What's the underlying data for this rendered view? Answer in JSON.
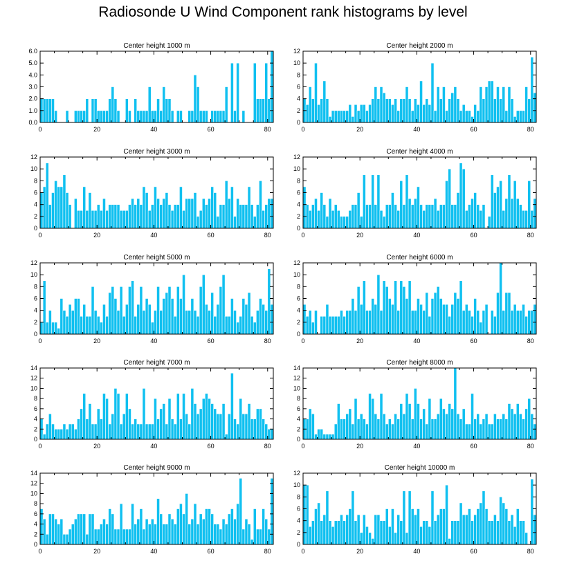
{
  "page_title": "Radiosonde U Wind Component rank histograms by level",
  "colors": {
    "bar": "#10c0f0",
    "bar_edge": "#ffffff",
    "axis": "#000000"
  },
  "chart_data": [
    {
      "type": "bar",
      "title": "Center height 1000 m",
      "xlim": [
        0,
        82
      ],
      "ylim": [
        0,
        6
      ],
      "xticks": [
        0,
        20,
        40,
        60,
        80
      ],
      "yticks": [
        0,
        1,
        2,
        3,
        4,
        5,
        6
      ],
      "ytick_labels": [
        "0.0",
        "1.0",
        "2.0",
        "3.0",
        "4.0",
        "5.0",
        "6.0"
      ],
      "values": [
        2,
        2,
        2,
        2,
        2,
        1,
        0,
        0,
        0,
        1,
        0,
        0,
        1,
        1,
        1,
        1,
        2,
        0,
        2,
        2,
        1,
        1,
        1,
        1,
        2,
        3,
        2,
        1,
        0,
        0,
        2,
        1,
        0,
        2,
        1,
        1,
        1,
        1,
        3,
        1,
        1,
        2,
        1,
        3,
        2,
        2,
        1,
        0,
        1,
        1,
        0,
        0,
        1,
        1,
        4,
        3,
        1,
        1,
        1,
        0,
        1,
        1,
        1,
        1,
        1,
        3,
        0,
        5,
        1,
        5,
        0,
        1,
        0,
        0,
        0,
        5,
        2,
        2,
        2,
        5,
        2,
        6
      ]
    },
    {
      "type": "bar",
      "title": "Center height 2000 m",
      "xlim": [
        0,
        82
      ],
      "ylim": [
        0,
        12
      ],
      "xticks": [
        0,
        20,
        40,
        60,
        80
      ],
      "yticks": [
        0,
        2,
        4,
        6,
        8,
        10,
        12
      ],
      "ytick_labels": [
        "0",
        "2",
        "4",
        "6",
        "8",
        "10",
        "12"
      ],
      "values": [
        4,
        3,
        6,
        4,
        10,
        3,
        4,
        7,
        4,
        1,
        2,
        2,
        2,
        2,
        2,
        2,
        3,
        1,
        3,
        2,
        3,
        3,
        2,
        3,
        4,
        6,
        4,
        6,
        5,
        4,
        4,
        3,
        4,
        2,
        4,
        4,
        6,
        4,
        2,
        4,
        3,
        7,
        3,
        4,
        3,
        10,
        2,
        6,
        4,
        6,
        2,
        4,
        5,
        6,
        4,
        2,
        3,
        2,
        2,
        1,
        3,
        2,
        6,
        4,
        6,
        7,
        7,
        4,
        6,
        4,
        6,
        2,
        6,
        4,
        1,
        2,
        2,
        2,
        6,
        4,
        11,
        5
      ]
    },
    {
      "type": "bar",
      "title": "Center height 3000 m",
      "xlim": [
        0,
        82
      ],
      "ylim": [
        0,
        12
      ],
      "xticks": [
        0,
        20,
        40,
        60,
        80
      ],
      "yticks": [
        0,
        2,
        4,
        6,
        8,
        10,
        12
      ],
      "ytick_labels": [
        "0",
        "2",
        "4",
        "6",
        "8",
        "10",
        "12"
      ],
      "values": [
        6,
        7,
        11,
        4,
        6,
        8,
        7,
        7,
        9,
        6,
        4,
        0,
        5,
        3,
        3,
        7,
        3,
        6,
        3,
        3,
        4,
        3,
        5,
        3,
        4,
        4,
        4,
        4,
        3,
        3,
        3,
        4,
        5,
        4,
        5,
        4,
        7,
        6,
        3,
        4,
        7,
        5,
        4,
        5,
        6,
        4,
        3,
        4,
        4,
        7,
        3,
        5,
        5,
        5,
        6,
        2,
        3,
        5,
        4,
        5,
        7,
        6,
        2,
        4,
        4,
        8,
        5,
        7,
        2,
        5,
        4,
        4,
        4,
        7,
        4,
        2,
        4,
        8,
        3,
        4,
        5,
        5
      ]
    },
    {
      "type": "bar",
      "title": "Center height 4000 m",
      "xlim": [
        0,
        82
      ],
      "ylim": [
        0,
        12
      ],
      "xticks": [
        0,
        20,
        40,
        60,
        80
      ],
      "yticks": [
        0,
        2,
        4,
        6,
        8,
        10,
        12
      ],
      "ytick_labels": [
        "0",
        "2",
        "4",
        "6",
        "8",
        "10",
        "12"
      ],
      "values": [
        7,
        4,
        3,
        4,
        5,
        3,
        6,
        4,
        2,
        5,
        3,
        4,
        3,
        2,
        2,
        2,
        3,
        4,
        4,
        6,
        2,
        9,
        4,
        4,
        9,
        4,
        9,
        3,
        2,
        4,
        4,
        6,
        4,
        3,
        8,
        4,
        9,
        5,
        4,
        5,
        7,
        4,
        3,
        4,
        4,
        4,
        5,
        3,
        4,
        4,
        8,
        10,
        4,
        4,
        6,
        11,
        10,
        3,
        4,
        5,
        6,
        4,
        3,
        4,
        0,
        2,
        9,
        6,
        7,
        8,
        3,
        5,
        9,
        5,
        8,
        5,
        4,
        3,
        3,
        8,
        3,
        5
      ]
    },
    {
      "type": "bar",
      "title": "Center height 5000 m",
      "xlim": [
        0,
        82
      ],
      "ylim": [
        0,
        12
      ],
      "xticks": [
        0,
        20,
        40,
        60,
        80
      ],
      "yticks": [
        0,
        2,
        4,
        6,
        8,
        10,
        12
      ],
      "ytick_labels": [
        "0",
        "2",
        "4",
        "6",
        "8",
        "10",
        "12"
      ],
      "values": [
        2,
        9,
        2,
        4,
        2,
        2,
        1,
        6,
        4,
        3,
        5,
        4,
        6,
        6,
        3,
        5,
        3,
        3,
        8,
        4,
        3,
        2,
        5,
        3,
        7,
        8,
        6,
        4,
        8,
        3,
        5,
        8,
        9,
        3,
        5,
        8,
        4,
        6,
        5,
        2,
        4,
        8,
        4,
        6,
        7,
        8,
        6,
        3,
        8,
        6,
        10,
        4,
        4,
        6,
        4,
        3,
        8,
        10,
        5,
        4,
        7,
        3,
        5,
        8,
        10,
        3,
        3,
        6,
        4,
        2,
        3,
        6,
        5,
        7,
        3,
        2,
        4,
        6,
        5,
        4,
        11,
        5
      ]
    },
    {
      "type": "bar",
      "title": "Center height 6000 m",
      "xlim": [
        0,
        82
      ],
      "ylim": [
        0,
        12
      ],
      "xticks": [
        0,
        20,
        40,
        60,
        80
      ],
      "yticks": [
        0,
        2,
        4,
        6,
        8,
        10,
        12
      ],
      "ytick_labels": [
        "0",
        "2",
        "4",
        "6",
        "8",
        "10",
        "12"
      ],
      "values": [
        5,
        3,
        4,
        2,
        4,
        0,
        3,
        3,
        5,
        3,
        3,
        3,
        3,
        4,
        3,
        4,
        4,
        6,
        4,
        8,
        5,
        9,
        4,
        4,
        6,
        5,
        10,
        4,
        9,
        8,
        6,
        5,
        9,
        4,
        9,
        8,
        6,
        9,
        4,
        4,
        6,
        5,
        4,
        7,
        3,
        6,
        7,
        8,
        6,
        5,
        5,
        3,
        5,
        7,
        6,
        9,
        4,
        5,
        4,
        3,
        6,
        4,
        2,
        4,
        5,
        0,
        4,
        3,
        7,
        12,
        4,
        7,
        7,
        4,
        5,
        4,
        4,
        5,
        3,
        4,
        4,
        5
      ]
    },
    {
      "type": "bar",
      "title": "Center height 7000 m",
      "xlim": [
        0,
        82
      ],
      "ylim": [
        0,
        14
      ],
      "xticks": [
        0,
        20,
        40,
        60,
        80
      ],
      "yticks": [
        0,
        2,
        4,
        6,
        8,
        10,
        12,
        14
      ],
      "ytick_labels": [
        "0",
        "2",
        "4",
        "6",
        "8",
        "10",
        "12",
        "14"
      ],
      "values": [
        4,
        1,
        3,
        5,
        3,
        2,
        2,
        2,
        3,
        2,
        3,
        3,
        2,
        4,
        6,
        9,
        4,
        7,
        3,
        3,
        6,
        4,
        9,
        8,
        3,
        5,
        10,
        9,
        3,
        5,
        9,
        6,
        3,
        4,
        3,
        3,
        10,
        3,
        3,
        3,
        8,
        4,
        6,
        7,
        3,
        8,
        4,
        3,
        9,
        4,
        9,
        5,
        3,
        10,
        7,
        5,
        6,
        8,
        9,
        8,
        7,
        6,
        5,
        5,
        7,
        1,
        5,
        13,
        4,
        3,
        8,
        5,
        5,
        7,
        4,
        4,
        6,
        6,
        4,
        3,
        2,
        2
      ]
    },
    {
      "type": "bar",
      "title": "Center height 8000 m",
      "xlim": [
        0,
        82
      ],
      "ylim": [
        0,
        14
      ],
      "xticks": [
        0,
        20,
        40,
        60,
        80
      ],
      "yticks": [
        0,
        2,
        4,
        6,
        8,
        10,
        12,
        14
      ],
      "ytick_labels": [
        "0",
        "2",
        "4",
        "6",
        "8",
        "10",
        "12",
        "14"
      ],
      "values": [
        4,
        4,
        6,
        5,
        1,
        2,
        2,
        1,
        1,
        1,
        1,
        3,
        7,
        4,
        4,
        5,
        6,
        3,
        8,
        4,
        5,
        4,
        3,
        9,
        8,
        5,
        4,
        9,
        5,
        3,
        4,
        3,
        5,
        4,
        7,
        5,
        9,
        7,
        4,
        10,
        7,
        4,
        6,
        3,
        8,
        4,
        4,
        5,
        8,
        6,
        5,
        7,
        6,
        14,
        5,
        4,
        6,
        3,
        3,
        9,
        4,
        5,
        3,
        4,
        5,
        3,
        3,
        5,
        4,
        4,
        5,
        4,
        7,
        6,
        5,
        7,
        5,
        4,
        6,
        8,
        5,
        3
      ]
    },
    {
      "type": "bar",
      "title": "Center height 9000 m",
      "xlim": [
        0,
        82
      ],
      "ylim": [
        0,
        14
      ],
      "xticks": [
        0,
        20,
        40,
        60,
        80
      ],
      "yticks": [
        0,
        2,
        4,
        6,
        8,
        10,
        12,
        14
      ],
      "ytick_labels": [
        "0",
        "2",
        "4",
        "6",
        "8",
        "10",
        "12",
        "14"
      ],
      "values": [
        7,
        5,
        2,
        6,
        6,
        5,
        4,
        5,
        2,
        2,
        3,
        4,
        5,
        6,
        6,
        6,
        2,
        6,
        6,
        3,
        3,
        4,
        5,
        4,
        7,
        6,
        3,
        3,
        8,
        3,
        3,
        3,
        8,
        4,
        5,
        7,
        3,
        5,
        4,
        5,
        4,
        9,
        6,
        4,
        4,
        6,
        5,
        4,
        7,
        8,
        6,
        10,
        4,
        5,
        8,
        4,
        6,
        5,
        7,
        7,
        6,
        4,
        4,
        3,
        5,
        4,
        6,
        7,
        5,
        8,
        13,
        3,
        5,
        4,
        1,
        7,
        3,
        3,
        7,
        5,
        3,
        13
      ]
    },
    {
      "type": "bar",
      "title": "Center height 10000 m",
      "xlim": [
        0,
        82
      ],
      "ylim": [
        0,
        12
      ],
      "xticks": [
        0,
        20,
        40,
        60,
        80
      ],
      "yticks": [
        0,
        2,
        4,
        6,
        8,
        10,
        12
      ],
      "ytick_labels": [
        "0",
        "2",
        "4",
        "6",
        "8",
        "10",
        "12"
      ],
      "values": [
        10,
        10,
        3,
        4,
        6,
        7,
        4,
        5,
        9,
        4,
        3,
        4,
        4,
        5,
        4,
        5,
        6,
        9,
        4,
        5,
        2,
        5,
        3,
        2,
        1,
        5,
        5,
        4,
        4,
        6,
        3,
        6,
        2,
        5,
        4,
        9,
        2,
        9,
        6,
        5,
        6,
        3,
        4,
        4,
        3,
        9,
        4,
        5,
        6,
        6,
        10,
        1,
        4,
        4,
        4,
        7,
        5,
        5,
        6,
        4,
        5,
        6,
        7,
        9,
        6,
        4,
        4,
        5,
        4,
        8,
        7,
        6,
        4,
        5,
        3,
        6,
        4,
        4,
        2,
        0,
        11,
        5
      ]
    }
  ]
}
